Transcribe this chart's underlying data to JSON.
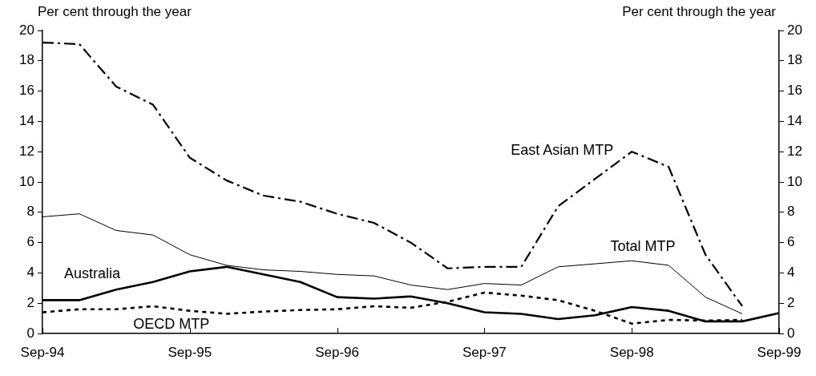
{
  "chart_data": {
    "type": "line",
    "ylabel": "Per cent through the year",
    "y2label": "Per cent through the year",
    "categories": [
      "Sep-94",
      null,
      null,
      null,
      "Sep-95",
      null,
      null,
      null,
      "Sep-96",
      null,
      null,
      null,
      "Sep-97",
      null,
      null,
      null,
      "Sep-98",
      null,
      null,
      null,
      "Sep-99"
    ],
    "series": [
      {
        "name": "East Asian MTP",
        "color": "#000000",
        "line_style": "dashed",
        "values": [
          19.2,
          19.1,
          16.3,
          15.1,
          11.6,
          10.1,
          9.1,
          8.7,
          7.9,
          7.3,
          6.0,
          4.3,
          4.4,
          4.4,
          8.4,
          10.2,
          12.0,
          11.0,
          5.2,
          1.8,
          null
        ]
      },
      {
        "name": "Total MTP",
        "color": "#000000",
        "line_style": "solid",
        "values": [
          7.7,
          7.9,
          6.8,
          6.5,
          5.2,
          4.5,
          4.2,
          4.1,
          3.9,
          3.8,
          3.2,
          2.9,
          3.3,
          3.2,
          4.4,
          4.6,
          4.8,
          4.5,
          2.4,
          1.3,
          null
        ]
      },
      {
        "name": "Australia",
        "color": "#000000",
        "line_style": "solid",
        "values": [
          2.2,
          2.2,
          2.9,
          3.4,
          4.1,
          4.4,
          3.9,
          3.4,
          2.4,
          2.3,
          2.45,
          2.0,
          1.4,
          1.3,
          0.95,
          1.2,
          1.75,
          1.5,
          0.8,
          0.8,
          1.35
        ]
      },
      {
        "name": "OECD MTP",
        "color": "#000000",
        "line_style": "dotted",
        "values": [
          1.4,
          1.6,
          1.6,
          1.8,
          1.5,
          1.3,
          1.45,
          1.55,
          1.6,
          1.8,
          1.7,
          2.1,
          2.7,
          2.5,
          2.2,
          1.5,
          0.65,
          0.9,
          0.85,
          0.9,
          null
        ]
      }
    ],
    "ylim": [
      0,
      20
    ],
    "yticks": [
      0,
      2,
      4,
      6,
      8,
      10,
      12,
      14,
      16,
      18,
      20
    ],
    "y2lim": [
      0,
      20
    ],
    "y2ticks": [
      0,
      2,
      4,
      6,
      8,
      10,
      12,
      14,
      16,
      18,
      20
    ],
    "grid": false,
    "legend": false,
    "marker": "none"
  }
}
